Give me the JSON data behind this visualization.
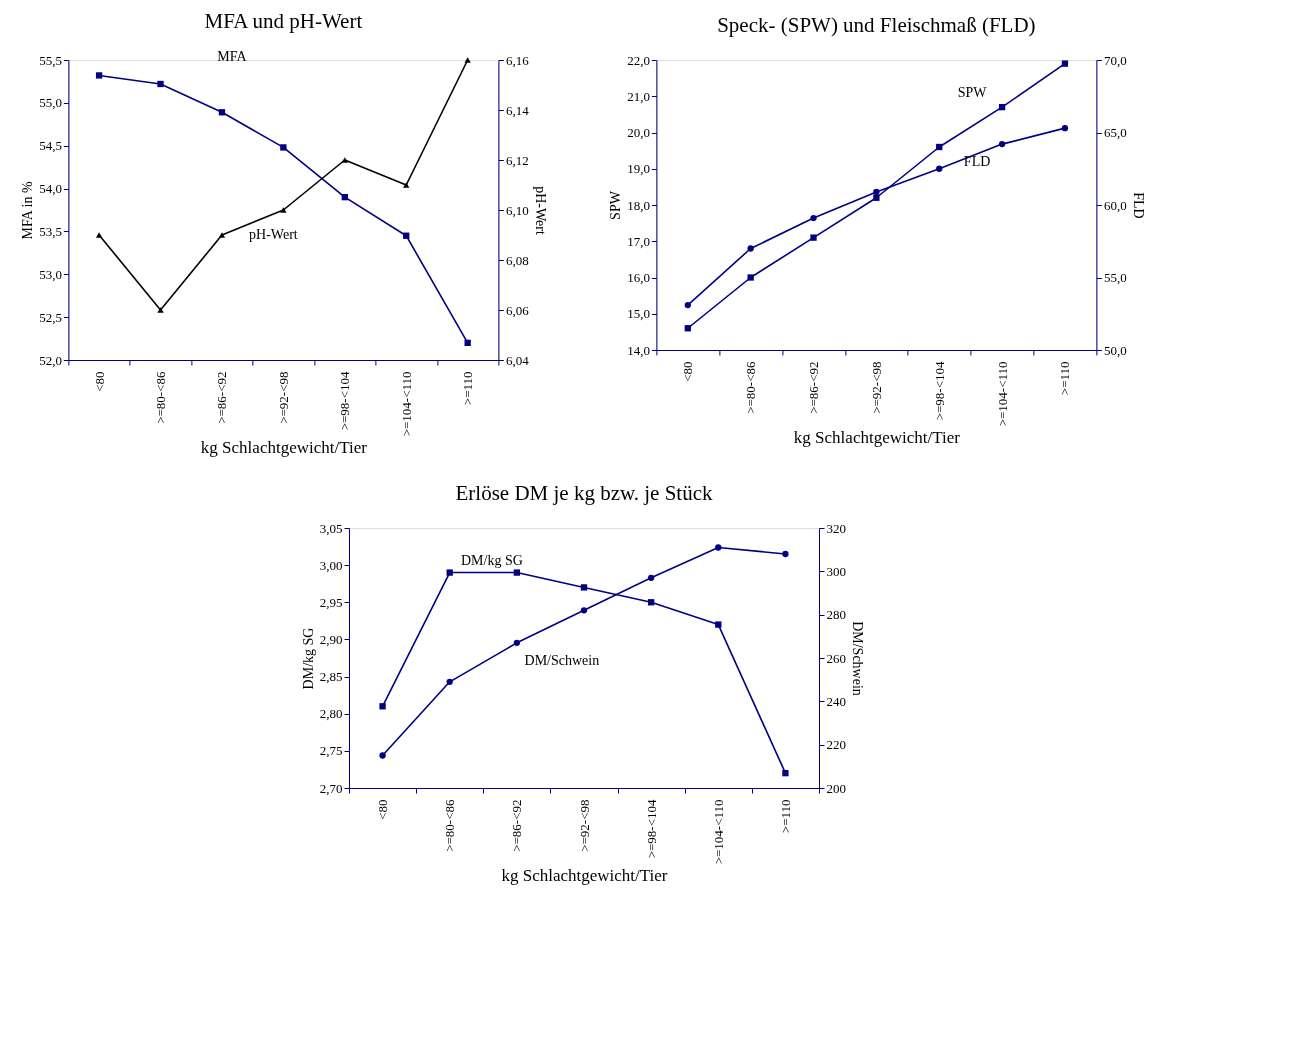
{
  "chart_data": [
    {
      "type": "line",
      "title": "MFA und pH-Wert",
      "xlabel": "kg Schlachtgewicht/Tier",
      "ylabel": "MFA in %",
      "y2label": "pH-Wert",
      "categories": [
        "<80",
        ">=80-<86",
        ">=86-<92",
        ">=92-<98",
        ">=98-<104",
        ">=104-<110",
        ">=110"
      ],
      "ylim": [
        52.0,
        55.5
      ],
      "yticks": [
        {
          "value": 52.0,
          "label": "52,0"
        },
        {
          "value": 52.5,
          "label": "52,5"
        },
        {
          "value": 53.0,
          "label": "53,0"
        },
        {
          "value": 53.5,
          "label": "53,5"
        },
        {
          "value": 54.0,
          "label": "54,0"
        },
        {
          "value": 54.5,
          "label": "54,5"
        },
        {
          "value": 55.0,
          "label": "55,0"
        },
        {
          "value": 55.5,
          "label": "55,5"
        }
      ],
      "y2lim": [
        6.04,
        6.16
      ],
      "y2ticks": [
        {
          "value": 6.04,
          "label": "6,04"
        },
        {
          "value": 6.06,
          "label": "6,06"
        },
        {
          "value": 6.08,
          "label": "6,08"
        },
        {
          "value": 6.1,
          "label": "6,10"
        },
        {
          "value": 6.12,
          "label": "6,12"
        },
        {
          "value": 6.14,
          "label": "6,14"
        },
        {
          "value": 6.16,
          "label": "6,16"
        }
      ],
      "grid": false,
      "legend": false,
      "series": [
        {
          "name": "MFA",
          "color": "#000080",
          "marker": "square",
          "values": [
            55.32,
            55.22,
            54.89,
            54.48,
            53.9,
            53.45,
            52.2
          ]
        },
        {
          "name": "pH-Wert",
          "color": "#000000",
          "marker": "triangle",
          "axis": "y2",
          "values": [
            6.09,
            6.06,
            6.09,
            6.1,
            6.12,
            6.11,
            6.16
          ]
        }
      ]
    },
    {
      "type": "line",
      "title": "Speck- (SPW) und Fleischmaß (FLD)",
      "xlabel": "kg Schlachtgewicht/Tier",
      "ylabel": "SPW",
      "y2label": "FLD",
      "categories": [
        "<80",
        ">=80-<86",
        ">=86-<92",
        ">=92-<98",
        ">=98-<104",
        ">=104-<110",
        ">=110"
      ],
      "ylim": [
        14.0,
        22.0
      ],
      "yticks": [
        {
          "value": 14.0,
          "label": "14,0"
        },
        {
          "value": 15.0,
          "label": "15,0"
        },
        {
          "value": 16.0,
          "label": "16,0"
        },
        {
          "value": 17.0,
          "label": "17,0"
        },
        {
          "value": 18.0,
          "label": "18,0"
        },
        {
          "value": 19.0,
          "label": "19,0"
        },
        {
          "value": 20.0,
          "label": "20,0"
        },
        {
          "value": 21.0,
          "label": "21,0"
        },
        {
          "value": 22.0,
          "label": "22,0"
        }
      ],
      "y2lim": [
        50.0,
        70.0
      ],
      "y2ticks": [
        {
          "value": 50.0,
          "label": "50,0"
        },
        {
          "value": 55.0,
          "label": "55,0"
        },
        {
          "value": 60.0,
          "label": "60,0"
        },
        {
          "value": 65.0,
          "label": "65,0"
        },
        {
          "value": 70.0,
          "label": "70,0"
        }
      ],
      "grid": false,
      "legend": false,
      "series": [
        {
          "name": "SPW",
          "color": "#000080",
          "marker": "square",
          "values": [
            14.6,
            16.0,
            17.1,
            18.2,
            19.6,
            20.7,
            21.9
          ]
        },
        {
          "name": "FLD",
          "color": "#000080",
          "marker": "circle",
          "axis": "y2",
          "values": [
            53.1,
            57.0,
            59.1,
            60.9,
            62.5,
            64.2,
            65.3
          ]
        }
      ]
    },
    {
      "type": "line",
      "title": "Erlöse DM je kg bzw. je Stück",
      "xlabel": "kg Schlachtgewicht/Tier",
      "ylabel": "DM/kg SG",
      "y2label": "DM/Schwein",
      "categories": [
        "<80",
        ">=80-<86",
        ">=86-<92",
        ">=92-<98",
        ">=98-<104",
        ">=104-<110",
        ">=110"
      ],
      "ylim": [
        2.7,
        3.05
      ],
      "yticks": [
        {
          "value": 2.7,
          "label": "2,70"
        },
        {
          "value": 2.75,
          "label": "2,75"
        },
        {
          "value": 2.8,
          "label": "2,80"
        },
        {
          "value": 2.85,
          "label": "2,85"
        },
        {
          "value": 2.9,
          "label": "2,90"
        },
        {
          "value": 2.95,
          "label": "2,95"
        },
        {
          "value": 3.0,
          "label": "3,00"
        },
        {
          "value": 3.05,
          "label": "3,05"
        }
      ],
      "y2lim": [
        200,
        320
      ],
      "y2ticks": [
        200,
        220,
        240,
        260,
        280,
        300,
        320
      ],
      "grid": false,
      "legend": false,
      "series": [
        {
          "name": "DM/kg SG",
          "color": "#000080",
          "marker": "square",
          "values": [
            2.81,
            2.99,
            2.99,
            2.97,
            2.95,
            2.92,
            2.72
          ]
        },
        {
          "name": "DM/Schwein",
          "color": "#000080",
          "marker": "circle",
          "axis": "y2",
          "values": [
            215,
            249,
            267,
            282,
            297,
            311,
            308
          ]
        }
      ]
    }
  ]
}
